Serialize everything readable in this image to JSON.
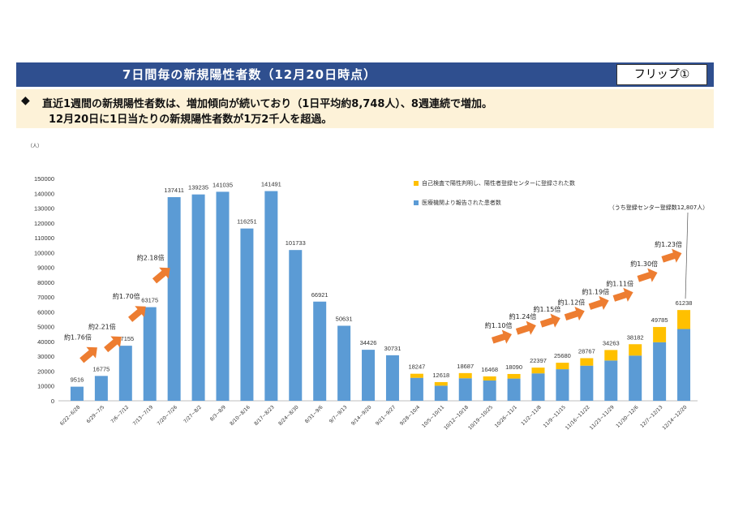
{
  "header": {
    "title": "7日間毎の新規陽性者数（12月20日時点）",
    "flip_label": "フリップ①"
  },
  "summary": {
    "bullet": "◆",
    "line1": "直近1週間の新規陽性者数は、増加傾向が続いており（1日平均約8,748人）、8週連続で増加。",
    "line2": "12月20日に1日当たりの新規陽性者数が1万2千人を超過。"
  },
  "chart_data": {
    "type": "bar",
    "stacked": true,
    "ylabel": "（人）",
    "ylim": [
      0,
      150000
    ],
    "yticks": [
      0,
      10000,
      20000,
      30000,
      40000,
      50000,
      60000,
      70000,
      80000,
      90000,
      100000,
      110000,
      120000,
      130000,
      140000,
      150000
    ],
    "grid": false,
    "legend_position": "top-right",
    "categories": [
      "6/22~6/28",
      "6/29~7/5",
      "7/6~7/12",
      "7/13~7/19",
      "7/20~7/26",
      "7/27~8/2",
      "8/3~8/9",
      "8/10~8/16",
      "8/17~8/23",
      "8/24~8/30",
      "8/31~9/6",
      "9/7~9/13",
      "9/14~9/20",
      "9/21~9/27",
      "9/28~10/4",
      "10/5~10/11",
      "10/12~10/18",
      "10/19~10/25",
      "10/26~11/1",
      "11/2~11/8",
      "11/9~11/15",
      "11/16~11/22",
      "11/23~11/29",
      "11/30~12/6",
      "12/7~12/13",
      "12/14~12/20"
    ],
    "totals": [
      9516,
      16775,
      37155,
      63175,
      137411,
      139235,
      141035,
      116251,
      141491,
      101733,
      66921,
      50631,
      34426,
      30731,
      18247,
      12618,
      18687,
      16468,
      18090,
      22397,
      25680,
      28767,
      34263,
      38182,
      49785,
      61238
    ],
    "series": [
      {
        "name": "医療機関より報告された患者数",
        "color": "#5b9bd5",
        "values": [
          9516,
          16775,
          37155,
          63175,
          137411,
          139235,
          141035,
          116251,
          141491,
          101733,
          66921,
          50631,
          34426,
          30731,
          15500,
          10200,
          15200,
          13700,
          15000,
          18500,
          21300,
          23700,
          27200,
          30500,
          39500,
          48431
        ]
      },
      {
        "name": "自己検査で陽性判明し、陽性者登録センターに登録された数",
        "color": "#ffc000",
        "values": [
          0,
          0,
          0,
          0,
          0,
          0,
          0,
          0,
          0,
          0,
          0,
          0,
          0,
          0,
          2747,
          2418,
          3487,
          2768,
          3090,
          3897,
          4380,
          5067,
          7063,
          7682,
          10285,
          12807
        ]
      }
    ],
    "annotations": {
      "ratios": [
        {
          "category": "6/29~7/5",
          "text": "約1.76倍"
        },
        {
          "category": "7/6~7/12",
          "text": "約2.21倍"
        },
        {
          "category": "7/13~7/19",
          "text": "約1.70倍"
        },
        {
          "category": "7/20~7/26",
          "text": "約2.18倍"
        },
        {
          "category": "10/26~11/1",
          "text": "約1.10倍"
        },
        {
          "category": "11/2~11/8",
          "text": "約1.24倍"
        },
        {
          "category": "11/9~11/15",
          "text": "約1.15倍"
        },
        {
          "category": "11/16~11/22",
          "text": "約1.12倍"
        },
        {
          "category": "11/23~11/29",
          "text": "約1.19倍"
        },
        {
          "category": "11/30~12/6",
          "text": "約1.11倍"
        },
        {
          "category": "12/7~12/13",
          "text": "約1.30倍"
        },
        {
          "category": "12/14~12/20",
          "text": "約1.23倍"
        }
      ],
      "callout": "（うち登録センター登録数12,807人）"
    },
    "arrow_color": "#ed7d31"
  }
}
